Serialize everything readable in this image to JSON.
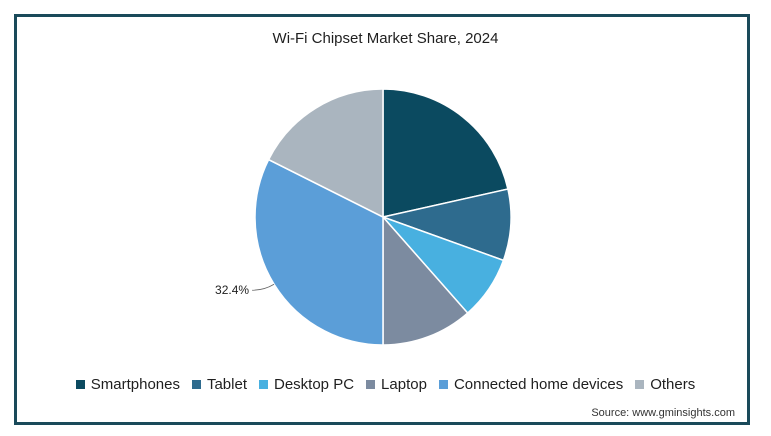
{
  "chart_data": {
    "type": "pie",
    "title": "Wi-Fi Chipset Market Share, 2024",
    "slices": [
      {
        "name": "Smartphones",
        "value": 21.5,
        "color": "#0b4a60",
        "label": ""
      },
      {
        "name": "Tablet",
        "value": 9.0,
        "color": "#2e6b8e",
        "label": ""
      },
      {
        "name": "Desktop PC",
        "value": 8.0,
        "color": "#48b0e0",
        "label": ""
      },
      {
        "name": "Laptop",
        "value": 11.5,
        "color": "#7c8ba0",
        "label": ""
      },
      {
        "name": "Connected home devices",
        "value": 32.4,
        "color": "#5b9ed8",
        "label": "32.4%"
      },
      {
        "name": "Others",
        "value": 17.6,
        "color": "#aab5bf",
        "label": ""
      }
    ],
    "start_angle_deg": 0,
    "direction": "clockwise",
    "legend_position": "bottom",
    "source": "Source: www.gminsights.com"
  }
}
